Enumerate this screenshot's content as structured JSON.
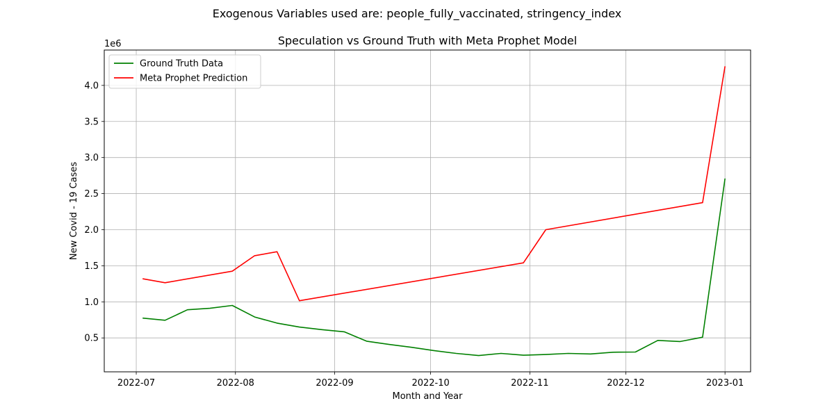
{
  "suptitle": "Exogenous Variables used are: people_fully_vaccinated, stringency_index",
  "chart_data": {
    "type": "line",
    "title": "Speculation vs Ground Truth with Meta Prophet Model",
    "xlabel": "Month and Year",
    "ylabel": "New Covid - 19 Cases",
    "y_offset_label": "1e6",
    "x_ticks": [
      "2022-07",
      "2022-08",
      "2022-09",
      "2022-10",
      "2022-11",
      "2022-12",
      "2023-01"
    ],
    "y_ticks": [
      "0.5",
      "1.0",
      "1.5",
      "2.0",
      "2.5",
      "3.0",
      "3.5",
      "4.0"
    ],
    "xlim": [
      "2022-06-21",
      "2023-01-09"
    ],
    "ylim": [
      30000,
      4490000
    ],
    "grid": true,
    "legend_position": "upper left",
    "series": [
      {
        "name": "Ground Truth Data",
        "color": "#008000",
        "x": [
          "2022-07-03",
          "2022-07-10",
          "2022-07-17",
          "2022-07-24",
          "2022-07-31",
          "2022-08-07",
          "2022-08-14",
          "2022-08-21",
          "2022-08-28",
          "2022-09-04",
          "2022-09-11",
          "2022-09-18",
          "2022-09-25",
          "2022-10-02",
          "2022-10-09",
          "2022-10-16",
          "2022-10-23",
          "2022-10-30",
          "2022-11-06",
          "2022-11-13",
          "2022-11-20",
          "2022-11-27",
          "2022-12-04",
          "2022-12-11",
          "2022-12-18",
          "2022-12-25",
          "2023-01-01"
        ],
        "values": [
          775000,
          745000,
          890000,
          910000,
          950000,
          790000,
          705000,
          650000,
          615000,
          585000,
          455000,
          410000,
          370000,
          325000,
          285000,
          255000,
          285000,
          260000,
          270000,
          285000,
          278000,
          302000,
          305000,
          465000,
          450000,
          510000,
          2710000
        ]
      },
      {
        "name": "Meta Prophet Prediction",
        "color": "#ff0000",
        "x": [
          "2022-07-03",
          "2022-07-10",
          "2022-07-31",
          "2022-08-07",
          "2022-08-14",
          "2022-08-21",
          "2022-10-30",
          "2022-11-06",
          "2022-12-25",
          "2023-01-01"
        ],
        "values": [
          1320000,
          1265000,
          1425000,
          1640000,
          1695000,
          1015000,
          1540000,
          2000000,
          2375000,
          4265000
        ]
      }
    ]
  }
}
